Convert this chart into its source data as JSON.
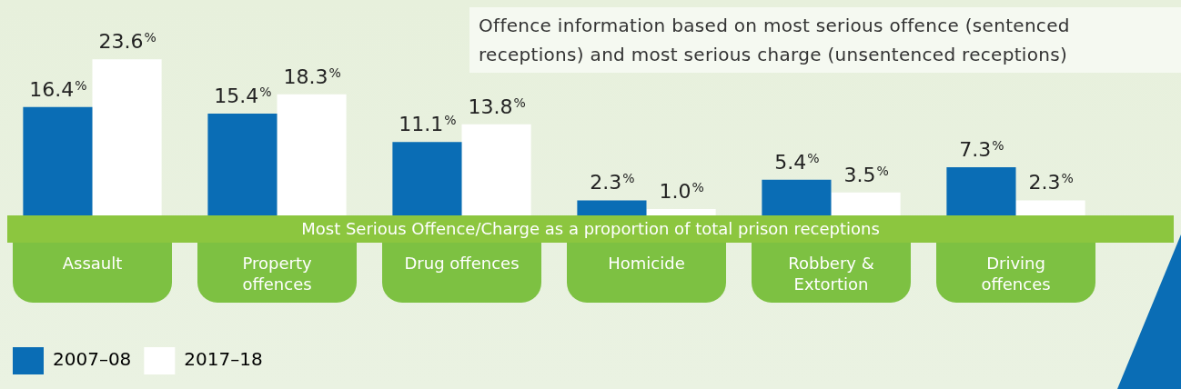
{
  "chart_data": {
    "type": "bar",
    "categories": [
      "Assault",
      "Property offences",
      "Drug offences",
      "Homicide",
      "Robbery & Extortion",
      "Driving offences"
    ],
    "series": [
      {
        "name": "2007–08",
        "color": "#0a6db5",
        "values": [
          16.4,
          15.4,
          11.1,
          2.3,
          5.4,
          7.3
        ],
        "value_labels": [
          "16.4%",
          "15.4%",
          "11.1%",
          "2.3%",
          "5.4%",
          "7.3%"
        ]
      },
      {
        "name": "2017–18",
        "color": "#ffffff",
        "values": [
          23.6,
          18.3,
          13.8,
          1.0,
          3.5,
          2.3
        ],
        "value_labels": [
          "23.6%",
          "18.3%",
          "13.8%",
          "1.0%",
          "3.5%",
          "2.3%"
        ]
      }
    ],
    "annotations": [
      "Most Serious Offence/Charge as a proportion of total prison receptions",
      "Offence information based on most serious offence (sentenced receptions) and most serious charge (unsentenced receptions)"
    ],
    "legend": "bottom left",
    "grid": false
  }
}
